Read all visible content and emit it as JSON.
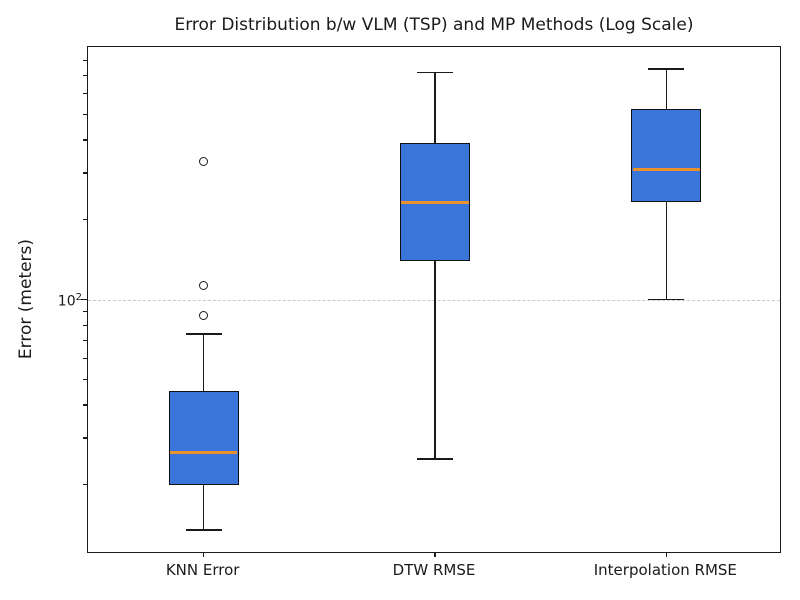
{
  "chart_data": {
    "type": "box",
    "title": "Error Distribution b/w VLM (TSP) and MP Methods (Log Scale)",
    "ylabel": "Error (meters)",
    "yscale": "log",
    "ylim": [
      11,
      900
    ],
    "grid": {
      "y_values": [
        100
      ],
      "style": "dashed"
    },
    "y_major_ticks": [
      {
        "value": 100,
        "label_base": "10",
        "label_exponent": "2"
      }
    ],
    "y_minor_ticks": [
      20,
      30,
      40,
      50,
      60,
      70,
      80,
      90,
      200,
      300,
      400,
      500,
      600,
      700,
      800
    ],
    "categories": [
      "KNN Error",
      "DTW RMSE",
      "Interpolation RMSE"
    ],
    "series": [
      {
        "name": "KNN Error",
        "whisker_low": 13.5,
        "q1": 20,
        "median": 26.5,
        "q3": 45,
        "whisker_high": 74,
        "outliers": [
          87,
          113,
          333
        ]
      },
      {
        "name": "DTW RMSE",
        "whisker_low": 25,
        "q1": 140,
        "median": 233,
        "q3": 390,
        "whisker_high": 720,
        "outliers": []
      },
      {
        "name": "Interpolation RMSE",
        "whisker_low": 100,
        "q1": 233,
        "median": 310,
        "q3": 525,
        "whisker_high": 740,
        "outliers": []
      }
    ],
    "legend": "none",
    "colors": {
      "box_fill": "#3a76d9",
      "box_edge": "#111111",
      "median": "#e8912d",
      "whisker": "#1a1a1a",
      "grid": "#c9c9c9",
      "text": "#1a1a1a",
      "background": "#ffffff"
    }
  }
}
